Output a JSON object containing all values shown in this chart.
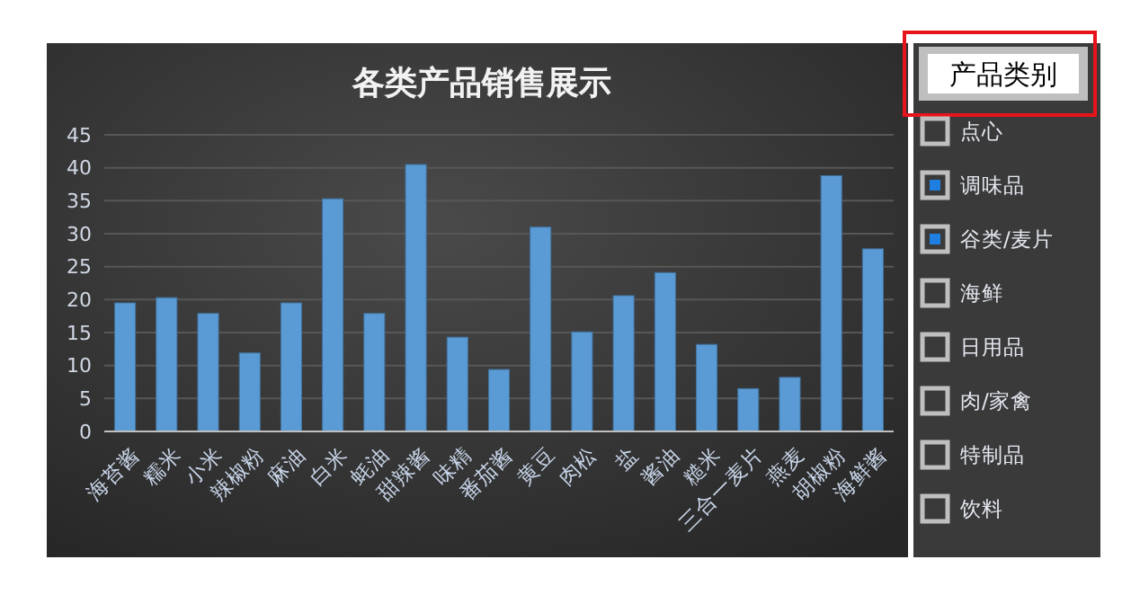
{
  "chart_data": {
    "type": "bar",
    "title": "各类产品销售展示",
    "categories": [
      "海苔酱",
      "糯米",
      "小米",
      "辣椒粉",
      "麻油",
      "白米",
      "蚝油",
      "甜辣酱",
      "味精",
      "番茄酱",
      "黄豆",
      "肉松",
      "盐",
      "酱油",
      "糙米",
      "三合一麦片",
      "燕麦",
      "胡椒粉",
      "海鲜酱"
    ],
    "values": [
      19.5,
      20.3,
      17.9,
      11.9,
      19.5,
      35.3,
      17.9,
      40.5,
      14.3,
      9.4,
      31,
      15.1,
      20.6,
      24.1,
      13.2,
      6.5,
      8.2,
      38.8,
      27.7
    ],
    "color": "#5b9bd5",
    "ylim": [
      0,
      45
    ],
    "yticks": [
      0,
      5,
      10,
      15,
      20,
      25,
      30,
      35,
      40,
      45
    ],
    "grid": "y",
    "legend_title": "产品类别",
    "annotations": [
      "点心",
      "调味品",
      "谷类/麦片",
      "海鲜",
      "日用品",
      "肉/家禽",
      "特制品",
      "饮料"
    ]
  }
}
